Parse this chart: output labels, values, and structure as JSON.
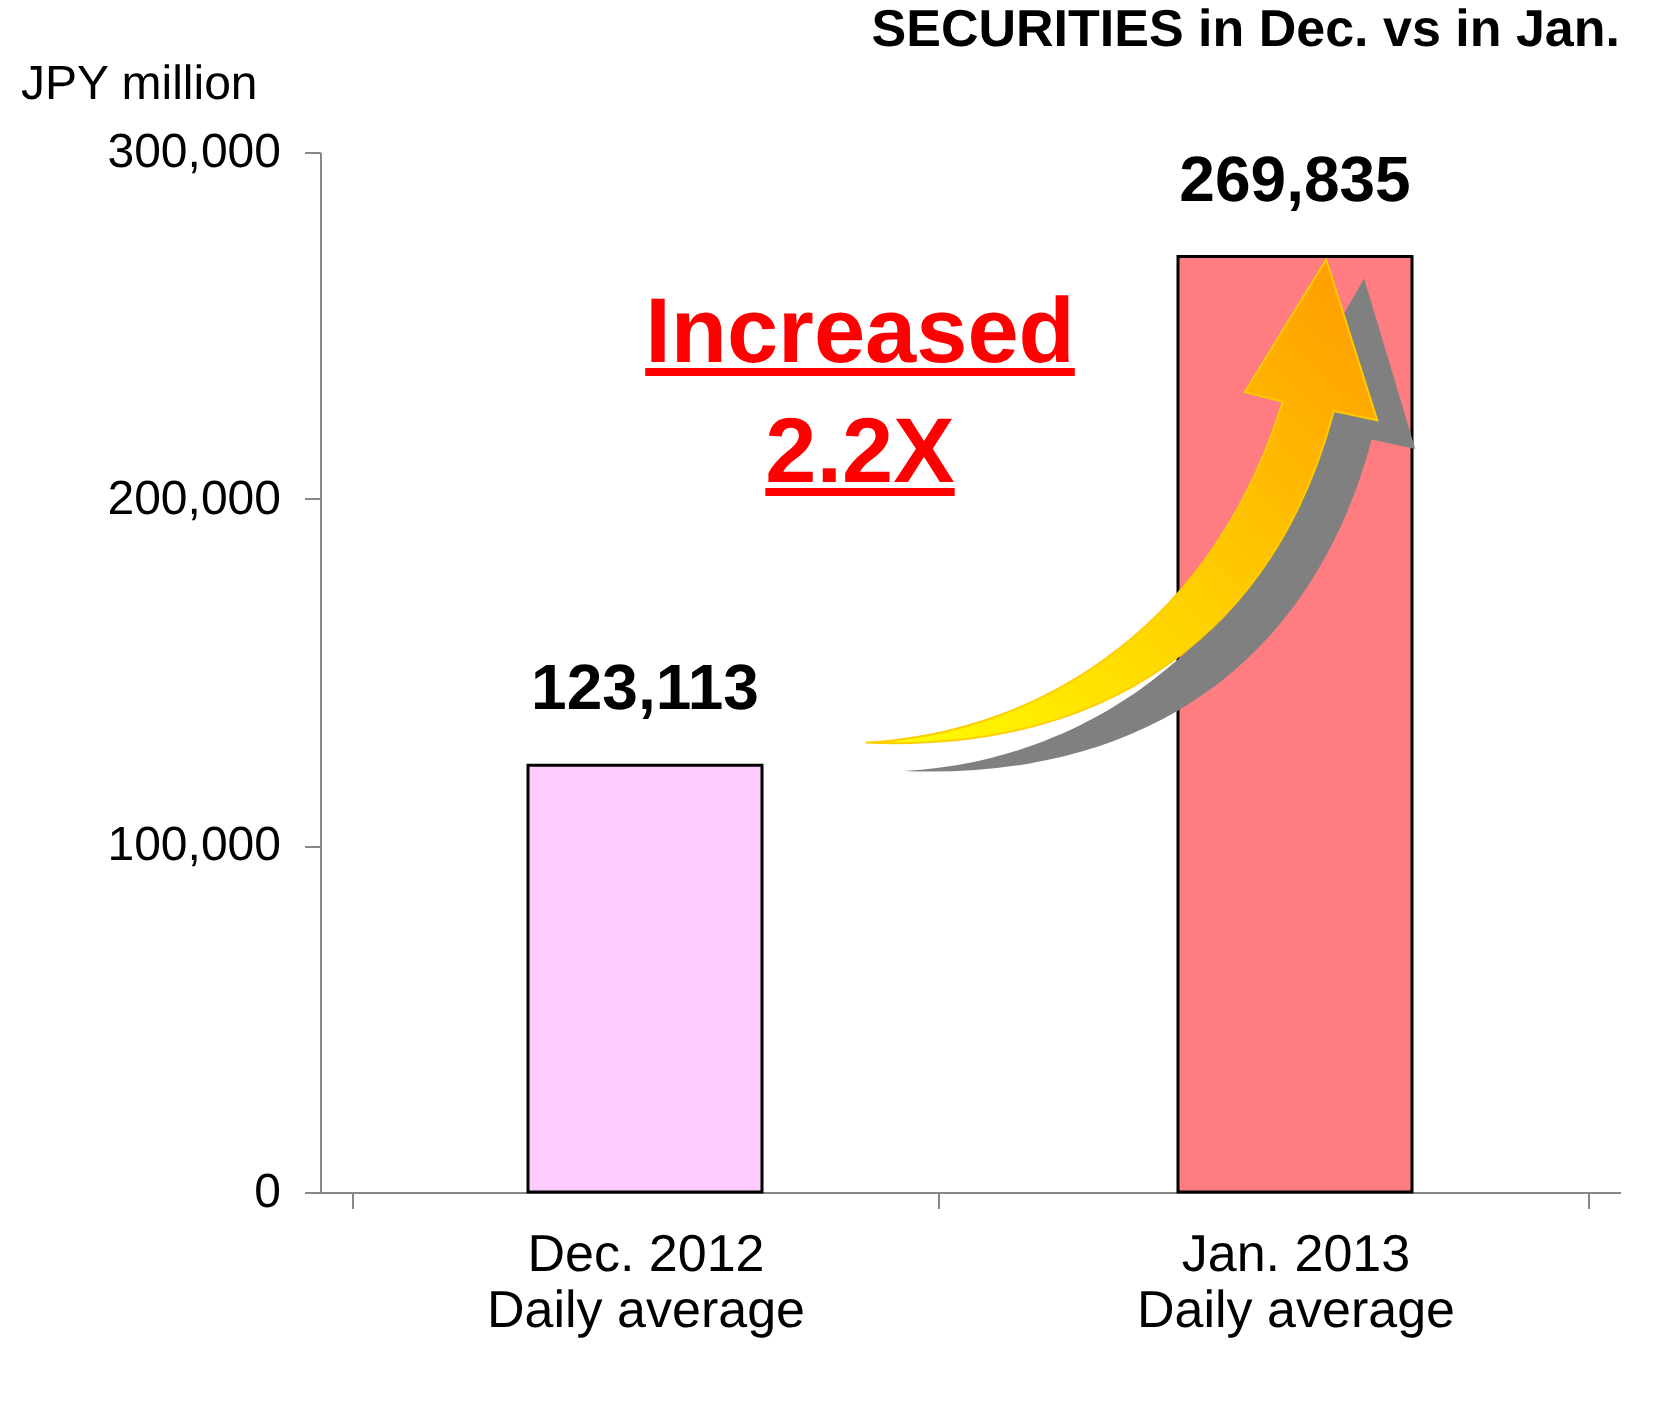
{
  "chart_data": {
    "type": "bar",
    "title": "SECURITIES in Dec. vs in Jan.",
    "ylabel": "JPY million",
    "categories": [
      "Dec. 2012\nDaily average",
      "Jan. 2013\nDaily average"
    ],
    "values": [
      123113,
      269835
    ],
    "value_labels": [
      "123,113",
      "269,835"
    ],
    "colors": [
      "#ffccff",
      "#ff7c80"
    ],
    "ylim": [
      0,
      300000
    ],
    "yticks": [
      0,
      {
        "value": 100000,
        "label": "100,000"
      },
      {
        "value": 200000,
        "label": "200,000"
      },
      {
        "value": 300000,
        "label": "300,000"
      }
    ],
    "grid": false,
    "annotations": [
      "Increased 2.2X"
    ]
  }
}
